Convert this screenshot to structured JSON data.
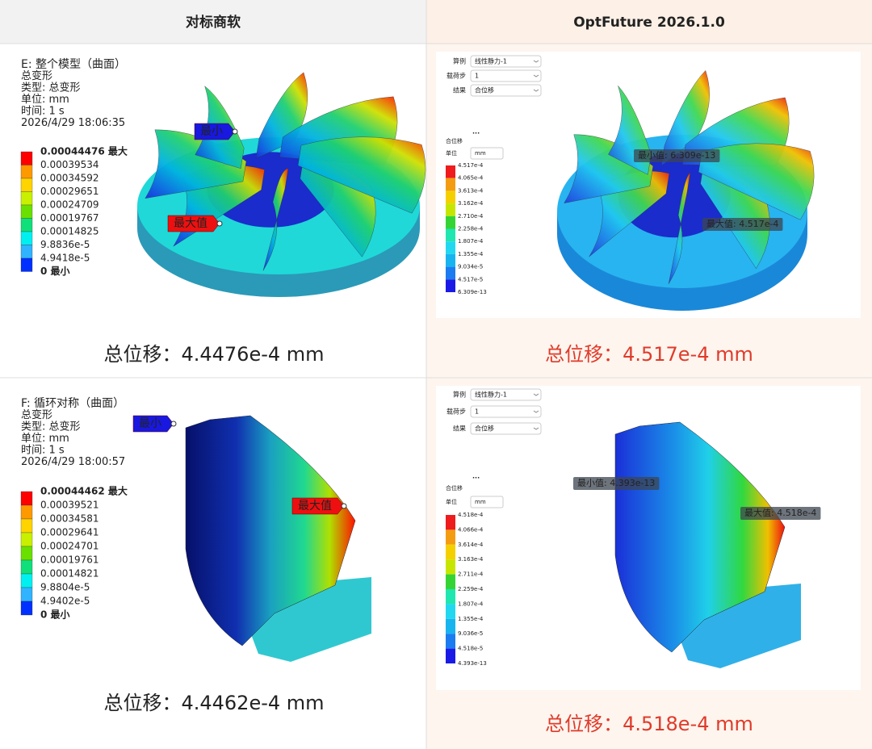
{
  "header": {
    "left": "对标商软",
    "right": "OptFuture 2026.1.0"
  },
  "rows": [
    {
      "left": {
        "info": [
          "E: 整个模型（曲面）",
          "总变形",
          "类型: 总变形",
          "单位: mm",
          "时间: 1 s",
          "2026/4/29 18:06:35"
        ],
        "legend": [
          "0.00044476 最大",
          "0.00039534",
          "0.00034592",
          "0.00029651",
          "0.00024709",
          "0.00019767",
          "0.00014825",
          "9.8836e-5",
          "4.9418e-5",
          "0 最小"
        ],
        "min_tag": "最小",
        "max_tag": "最大值",
        "result": "总位移：4.4476e-4 mm"
      },
      "right": {
        "controls": [
          {
            "label": "算例",
            "value": "线性静力-1"
          },
          {
            "label": "载荷步",
            "value": "1"
          },
          {
            "label": "结果",
            "value": "合位移"
          }
        ],
        "dots": "...",
        "legend_title": "合位移",
        "unit_label": "单位",
        "unit": "mm",
        "legend": [
          "4.517e-4",
          "4.065e-4",
          "3.613e-4",
          "3.162e-4",
          "2.710e-4",
          "2.258e-4",
          "1.807e-4",
          "1.355e-4",
          "9.034e-5",
          "4.517e-5",
          "6.309e-13"
        ],
        "min_tag": "最小值: 6.309e-13",
        "max_tag": "最大值: 4.517e-4",
        "result": "总位移：4.517e-4 mm"
      }
    },
    {
      "left": {
        "info": [
          "F: 循环对称（曲面）",
          "总变形",
          "类型: 总变形",
          "单位: mm",
          "时间: 1 s",
          "2026/4/29 18:00:57"
        ],
        "legend": [
          "0.00044462 最大",
          "0.00039521",
          "0.00034581",
          "0.00029641",
          "0.00024701",
          "0.00019761",
          "0.00014821",
          "9.8804e-5",
          "4.9402e-5",
          "0 最小"
        ],
        "min_tag": "最小",
        "max_tag": "最大值",
        "result": "总位移：4.4462e-4 mm"
      },
      "right": {
        "controls": [
          {
            "label": "算例",
            "value": "线性静力-1"
          },
          {
            "label": "载荷步",
            "value": "1"
          },
          {
            "label": "结果",
            "value": "合位移"
          }
        ],
        "dots": "...",
        "legend_title": "合位移",
        "unit_label": "单位",
        "unit": "mm",
        "legend": [
          "4.518e-4",
          "4.066e-4",
          "3.614e-4",
          "3.163e-4",
          "2.711e-4",
          "2.259e-4",
          "1.807e-4",
          "1.355e-4",
          "9.036e-5",
          "4.518e-5",
          "4.393e-13"
        ],
        "min_tag": "最小值: 4.393e-13",
        "max_tag": "最大值: 4.518e-4",
        "result": "总位移：4.518e-4 mm"
      }
    }
  ]
}
